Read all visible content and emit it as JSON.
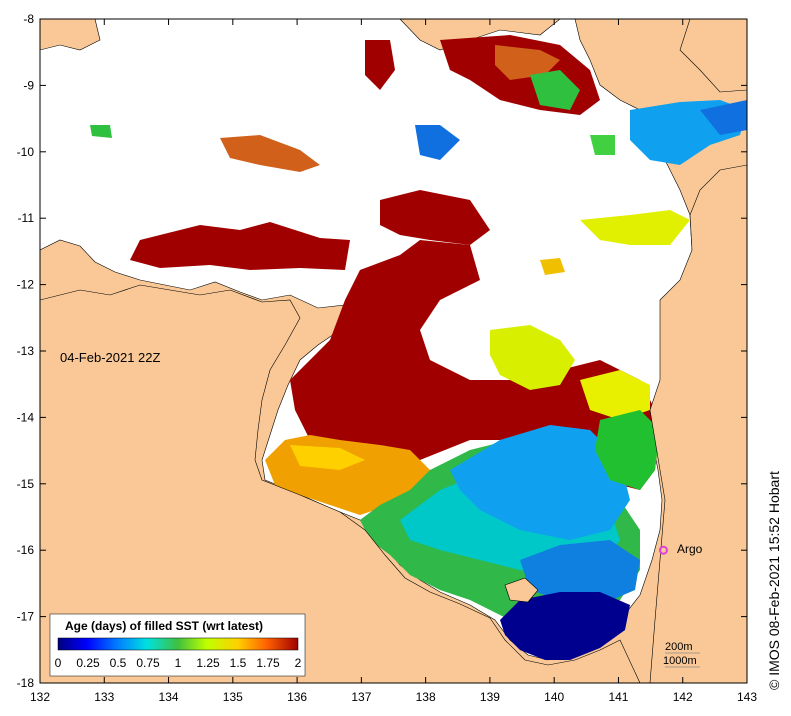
{
  "map": {
    "timestamp": "04-Feb-2021 22Z",
    "credit": "© IMOS 08-Feb-2021 15:52 Hobart",
    "x_ticks": [
      "132",
      "133",
      "134",
      "135",
      "136",
      "137",
      "138",
      "139",
      "140",
      "141",
      "142",
      "143"
    ],
    "y_ticks": [
      "-8",
      "-9",
      "-10",
      "-11",
      "-12",
      "-13",
      "-14",
      "-15",
      "-16",
      "-17",
      "-18"
    ],
    "legend": {
      "title": "Age (days) of filled SST (wrt latest)",
      "labels": [
        "0",
        "0.25",
        "0.5",
        "0.75",
        "1",
        "1.25",
        "1.5",
        "1.75",
        "2"
      ]
    },
    "argo": {
      "label": "Argo",
      "lon": 141.7,
      "lat": -16.0
    },
    "scale": {
      "line1": "200m",
      "line2": "1000m"
    },
    "colors": {
      "land": "#f9c896",
      "no_data": "#ffffff",
      "argo": "#e040e0"
    }
  }
}
